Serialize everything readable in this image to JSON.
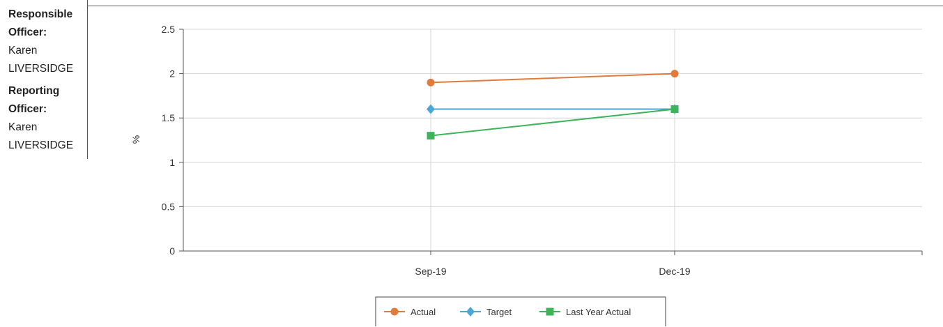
{
  "officers": {
    "responsible_label_1": "Responsible",
    "responsible_label_2": "Officer:",
    "responsible_name_1": "Karen",
    "responsible_name_2": "LIVERSIDGE",
    "reporting_label_1": "Reporting",
    "reporting_label_2": "Officer:",
    "reporting_name_1": "Karen",
    "reporting_name_2": "LIVERSIDGE"
  },
  "chart_data": {
    "type": "line",
    "categories": [
      "Sep-19",
      "Dec-19"
    ],
    "ylabel": "%",
    "xlabel": "",
    "ylim": [
      0,
      2.5
    ],
    "yticks": [
      "0",
      "0.5",
      "1",
      "1.5",
      "2",
      "2.5"
    ],
    "grid": true,
    "legend_position": "bottom",
    "series": [
      {
        "name": "Actual",
        "values": [
          1.9,
          2.0
        ],
        "color": "#e07b39",
        "marker": "circle"
      },
      {
        "name": "Target",
        "values": [
          1.6,
          1.6
        ],
        "color": "#4aa6d6",
        "marker": "diamond"
      },
      {
        "name": "Last Year Actual",
        "values": [
          1.3,
          1.6
        ],
        "color": "#3db35a",
        "marker": "square"
      }
    ]
  }
}
